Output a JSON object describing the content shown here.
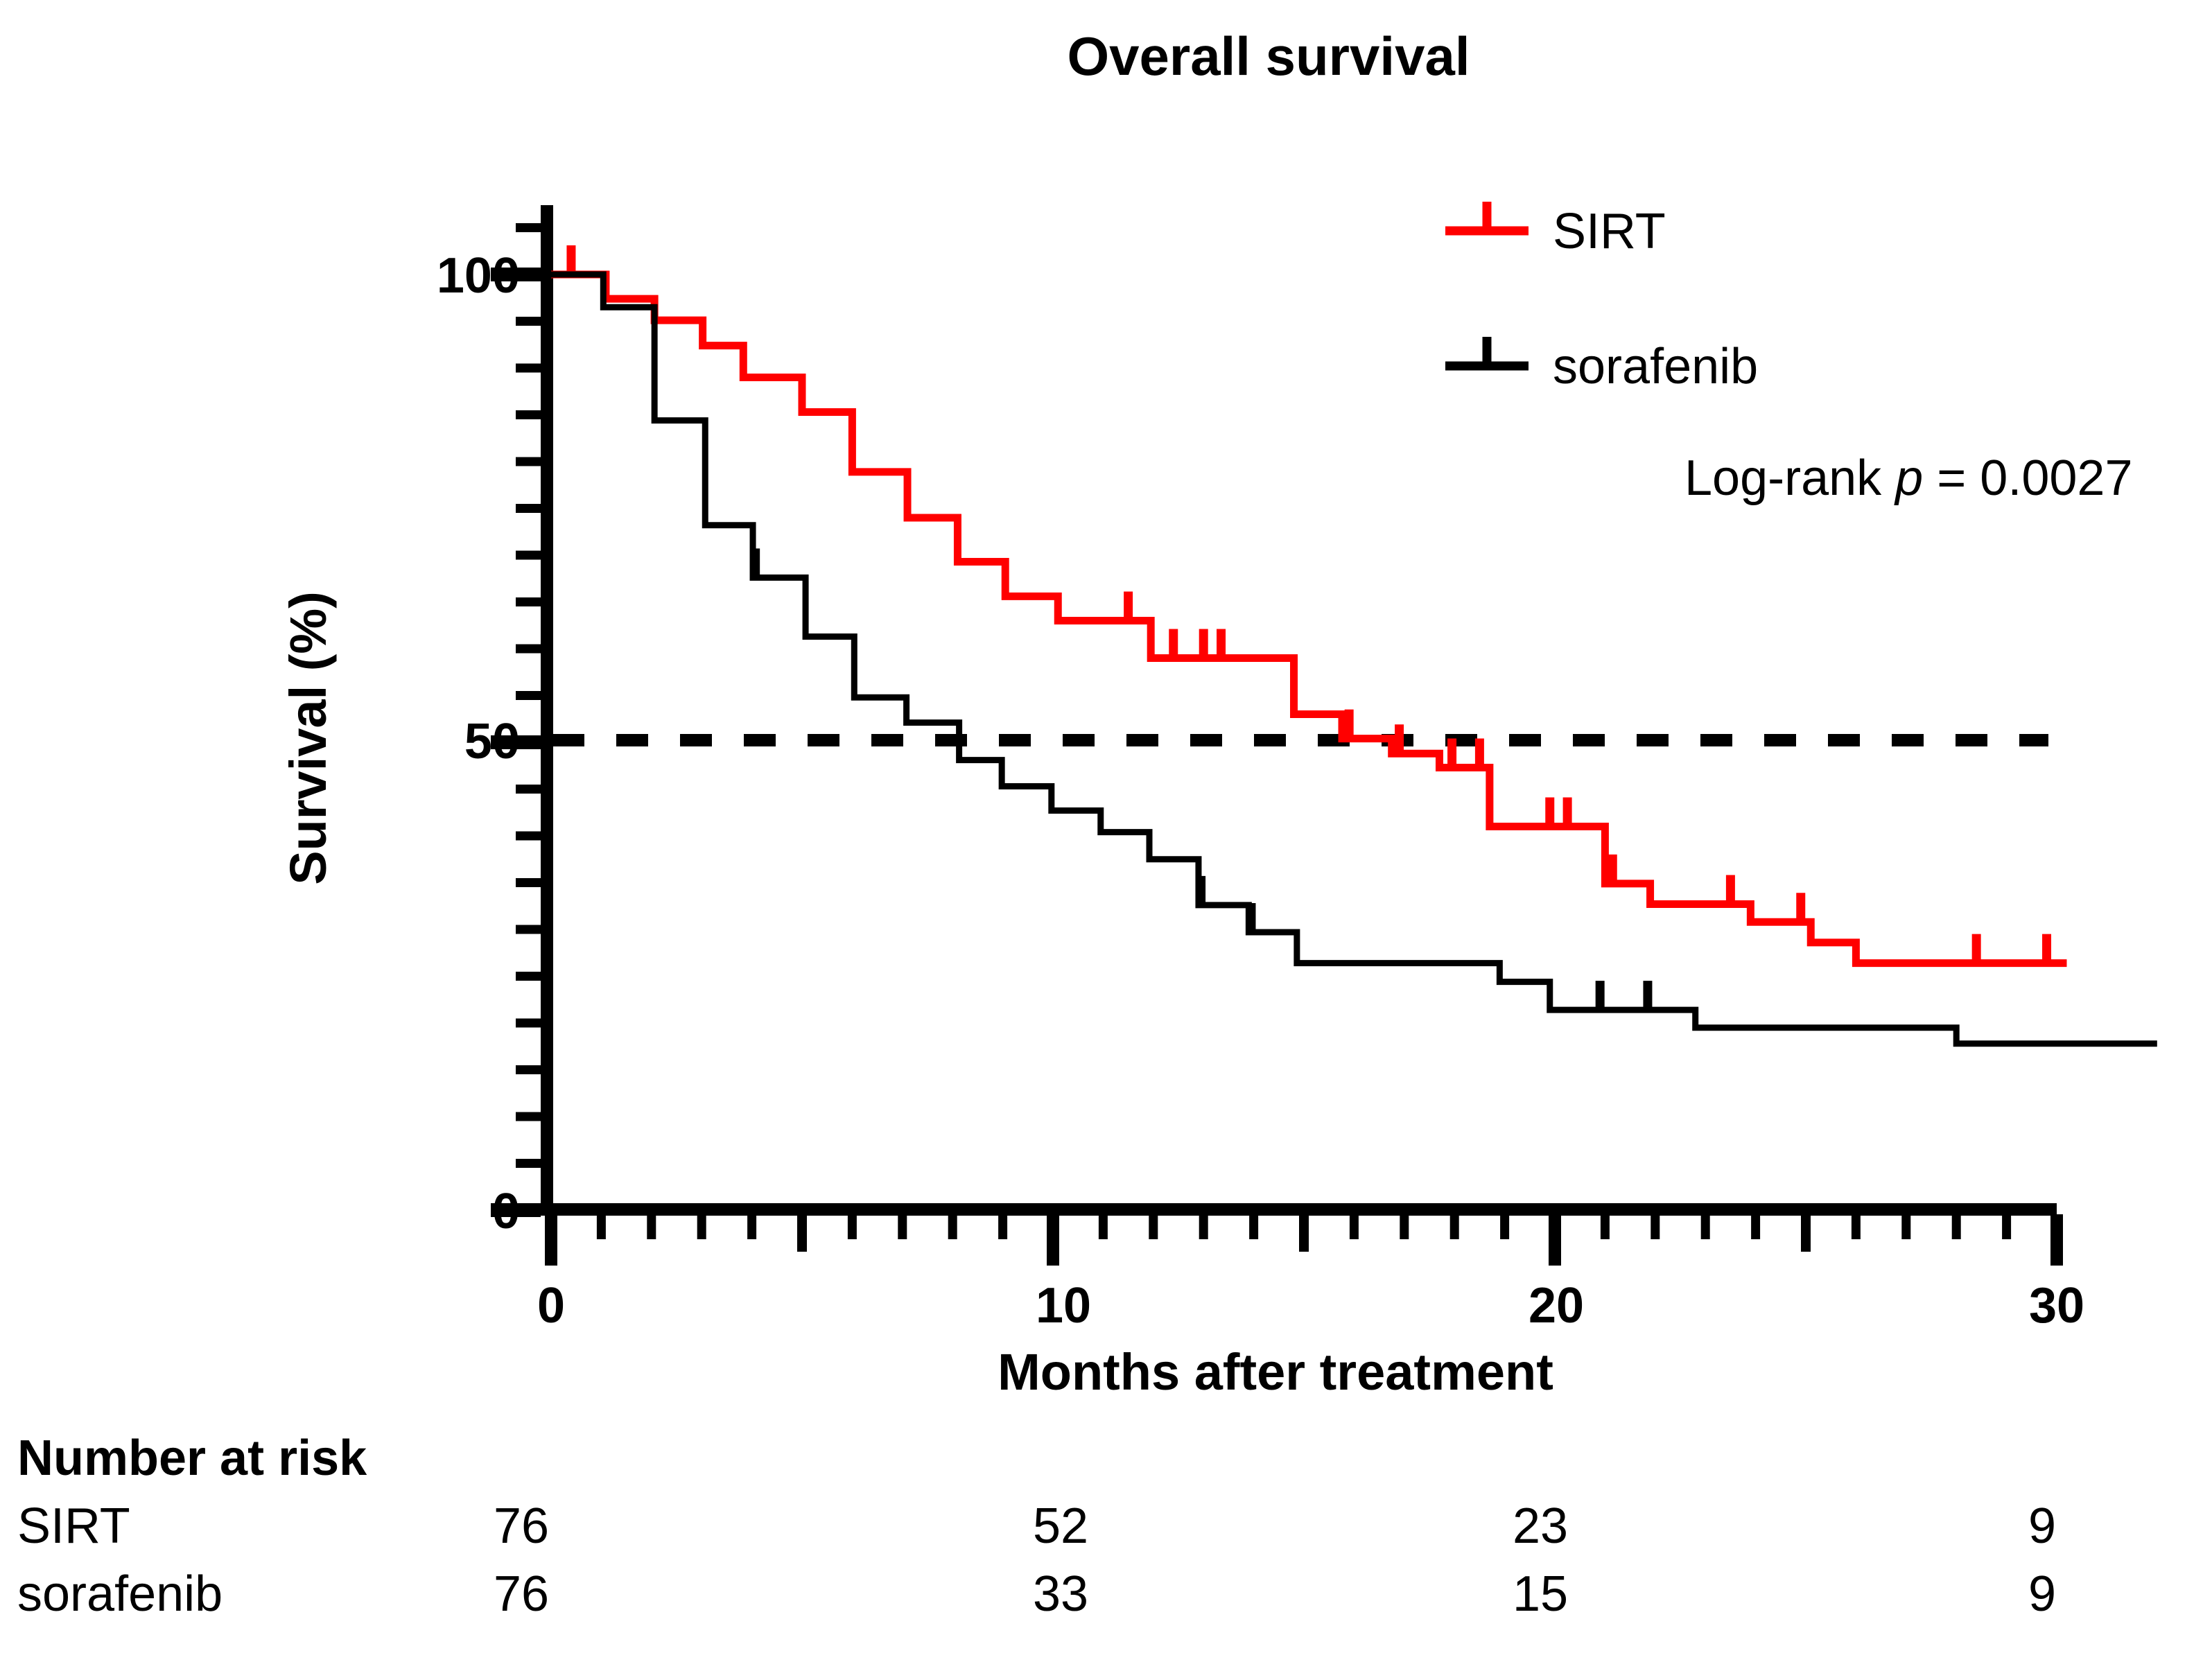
{
  "title": "Overall survival",
  "y_axis": {
    "label": "Survival (%)",
    "tick_labels": [
      "100",
      "50",
      "0"
    ]
  },
  "x_axis": {
    "label": "Months after treatment",
    "tick_labels": [
      "0",
      "10",
      "20",
      "30"
    ]
  },
  "legend": {
    "items": [
      {
        "label": "SIRT",
        "color": "#FF0000"
      },
      {
        "label": "sorafenib",
        "color": "#000000"
      }
    ],
    "logrank_prefix": "Log-rank ",
    "logrank_p": "p",
    "logrank_value": " = 0.0027"
  },
  "risk_table": {
    "title": "Number at risk",
    "months": [
      0,
      10,
      20,
      30
    ],
    "rows": [
      {
        "label": "SIRT",
        "values": [
          "76",
          "52",
          "23",
          "9"
        ]
      },
      {
        "label": "sorafenib",
        "values": [
          "76",
          "33",
          "15",
          "9"
        ]
      }
    ]
  },
  "chart_data": {
    "type": "line",
    "subtype": "kaplan-meier-step",
    "title": "Overall survival",
    "xlabel": "Months after treatment",
    "ylabel": "Survival (%)",
    "xlim": [
      0,
      30
    ],
    "ylim": [
      0,
      100
    ],
    "x_major_ticks": [
      0,
      10,
      20,
      30
    ],
    "x_medium_ticks": [
      5,
      15,
      25
    ],
    "x_minor_tick_interval": 1,
    "y_major_ticks": [
      0,
      50,
      100
    ],
    "y_minor_tick_interval": 5,
    "grid": false,
    "reference_line_y": 50,
    "reference_line_style": "dashed",
    "legend_position": "top-right",
    "logrank_p_value": 0.0027,
    "series": [
      {
        "name": "SIRT",
        "color": "#FF0000",
        "stroke_width": 11,
        "steps": [
          [
            0,
            100
          ],
          [
            1.09,
            97.4
          ],
          [
            2.06,
            95.1
          ],
          [
            3.02,
            92.4
          ],
          [
            3.83,
            89.0
          ],
          [
            5.0,
            85.3
          ],
          [
            6.0,
            78.9
          ],
          [
            7.1,
            74.0
          ],
          [
            8.1,
            69.3
          ],
          [
            9.05,
            65.6
          ],
          [
            10.1,
            63.0
          ],
          [
            11.95,
            59.0
          ],
          [
            14.8,
            53.0
          ],
          [
            15.76,
            50.4
          ],
          [
            16.75,
            48.8
          ],
          [
            17.7,
            47.3
          ],
          [
            18.7,
            41.0
          ],
          [
            21.0,
            34.9
          ],
          [
            21.9,
            32.7
          ],
          [
            23.9,
            30.8
          ],
          [
            25.1,
            28.6
          ],
          [
            26.0,
            26.4
          ]
        ],
        "end_x": 30.2,
        "censor_marks": [
          [
            0.4,
            100
          ],
          [
            11.5,
            63.0
          ],
          [
            12.4,
            59.0
          ],
          [
            13.0,
            59.0
          ],
          [
            13.35,
            59.0
          ],
          [
            15.9,
            50.4
          ],
          [
            16.9,
            48.8
          ],
          [
            17.95,
            47.3
          ],
          [
            18.5,
            47.3
          ],
          [
            19.9,
            41.0
          ],
          [
            20.25,
            41.0
          ],
          [
            21.15,
            34.9
          ],
          [
            23.5,
            32.7
          ],
          [
            24.9,
            30.8
          ],
          [
            28.4,
            26.4
          ],
          [
            29.8,
            26.4
          ]
        ]
      },
      {
        "name": "sorafenib",
        "color": "#000000",
        "stroke_width": 9,
        "steps": [
          [
            0,
            100
          ],
          [
            1.04,
            96.5
          ],
          [
            2.06,
            84.4
          ],
          [
            3.07,
            73.2
          ],
          [
            4.02,
            67.6
          ],
          [
            5.07,
            61.3
          ],
          [
            6.04,
            54.8
          ],
          [
            7.08,
            52.1
          ],
          [
            8.13,
            48.1
          ],
          [
            8.98,
            45.3
          ],
          [
            9.97,
            42.7
          ],
          [
            10.95,
            40.4
          ],
          [
            11.92,
            37.5
          ],
          [
            12.9,
            32.6
          ],
          [
            13.9,
            29.7
          ],
          [
            14.86,
            26.4
          ],
          [
            18.9,
            24.4
          ],
          [
            19.9,
            21.4
          ],
          [
            22.8,
            19.5
          ],
          [
            28.0,
            17.8
          ]
        ],
        "end_x": 32.0,
        "censor_marks": [
          [
            4.07,
            67.6
          ],
          [
            12.95,
            32.6
          ],
          [
            13.95,
            29.7
          ],
          [
            20.9,
            21.4
          ],
          [
            21.85,
            21.4
          ]
        ]
      }
    ],
    "number_at_risk": {
      "months": [
        0,
        10,
        20,
        30
      ],
      "SIRT": [
        76,
        52,
        23,
        9
      ],
      "sorafenib": [
        76,
        33,
        15,
        9
      ]
    }
  }
}
